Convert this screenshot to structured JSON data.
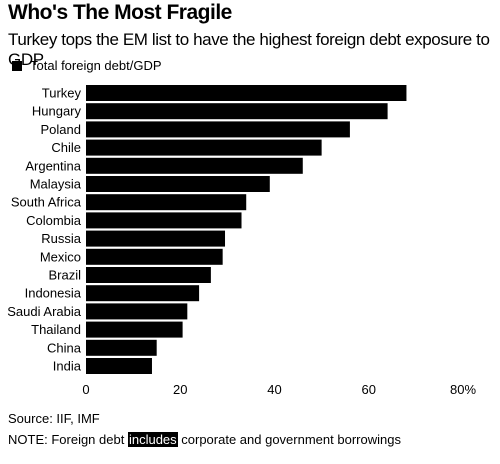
{
  "title": "Who's The Most Fragile",
  "subtitle": "Turkey tops the EM list to have the highest foreign debt exposure to GDP",
  "legend": {
    "label": "Total foreign debt/GDP",
    "color": "#000000"
  },
  "source": "Source: IIF, IMF",
  "note": {
    "prefix": "NOTE: Foreign debt ",
    "highlight": "includes",
    "suffix": " corporate and government borrowings"
  },
  "chart_data": {
    "type": "bar",
    "orientation": "horizontal",
    "categories": [
      "Turkey",
      "Hungary",
      "Poland",
      "Chile",
      "Argentina",
      "Malaysia",
      "South Africa",
      "Colombia",
      "Russia",
      "Mexico",
      "Brazil",
      "Indonesia",
      "Saudi Arabia",
      "Thailand",
      "China",
      "India"
    ],
    "series": [
      {
        "name": "Total foreign debt/GDP",
        "values": [
          68,
          64,
          56,
          50,
          46,
          39,
          34,
          33,
          29.5,
          29,
          26.5,
          24,
          21.5,
          20.5,
          15,
          14
        ]
      }
    ],
    "xlim": [
      0,
      80
    ],
    "xticks": [
      "0",
      "20",
      "40",
      "60",
      "80%"
    ],
    "bar_color": "#000000",
    "grid": false,
    "legend_position": "top-left"
  }
}
